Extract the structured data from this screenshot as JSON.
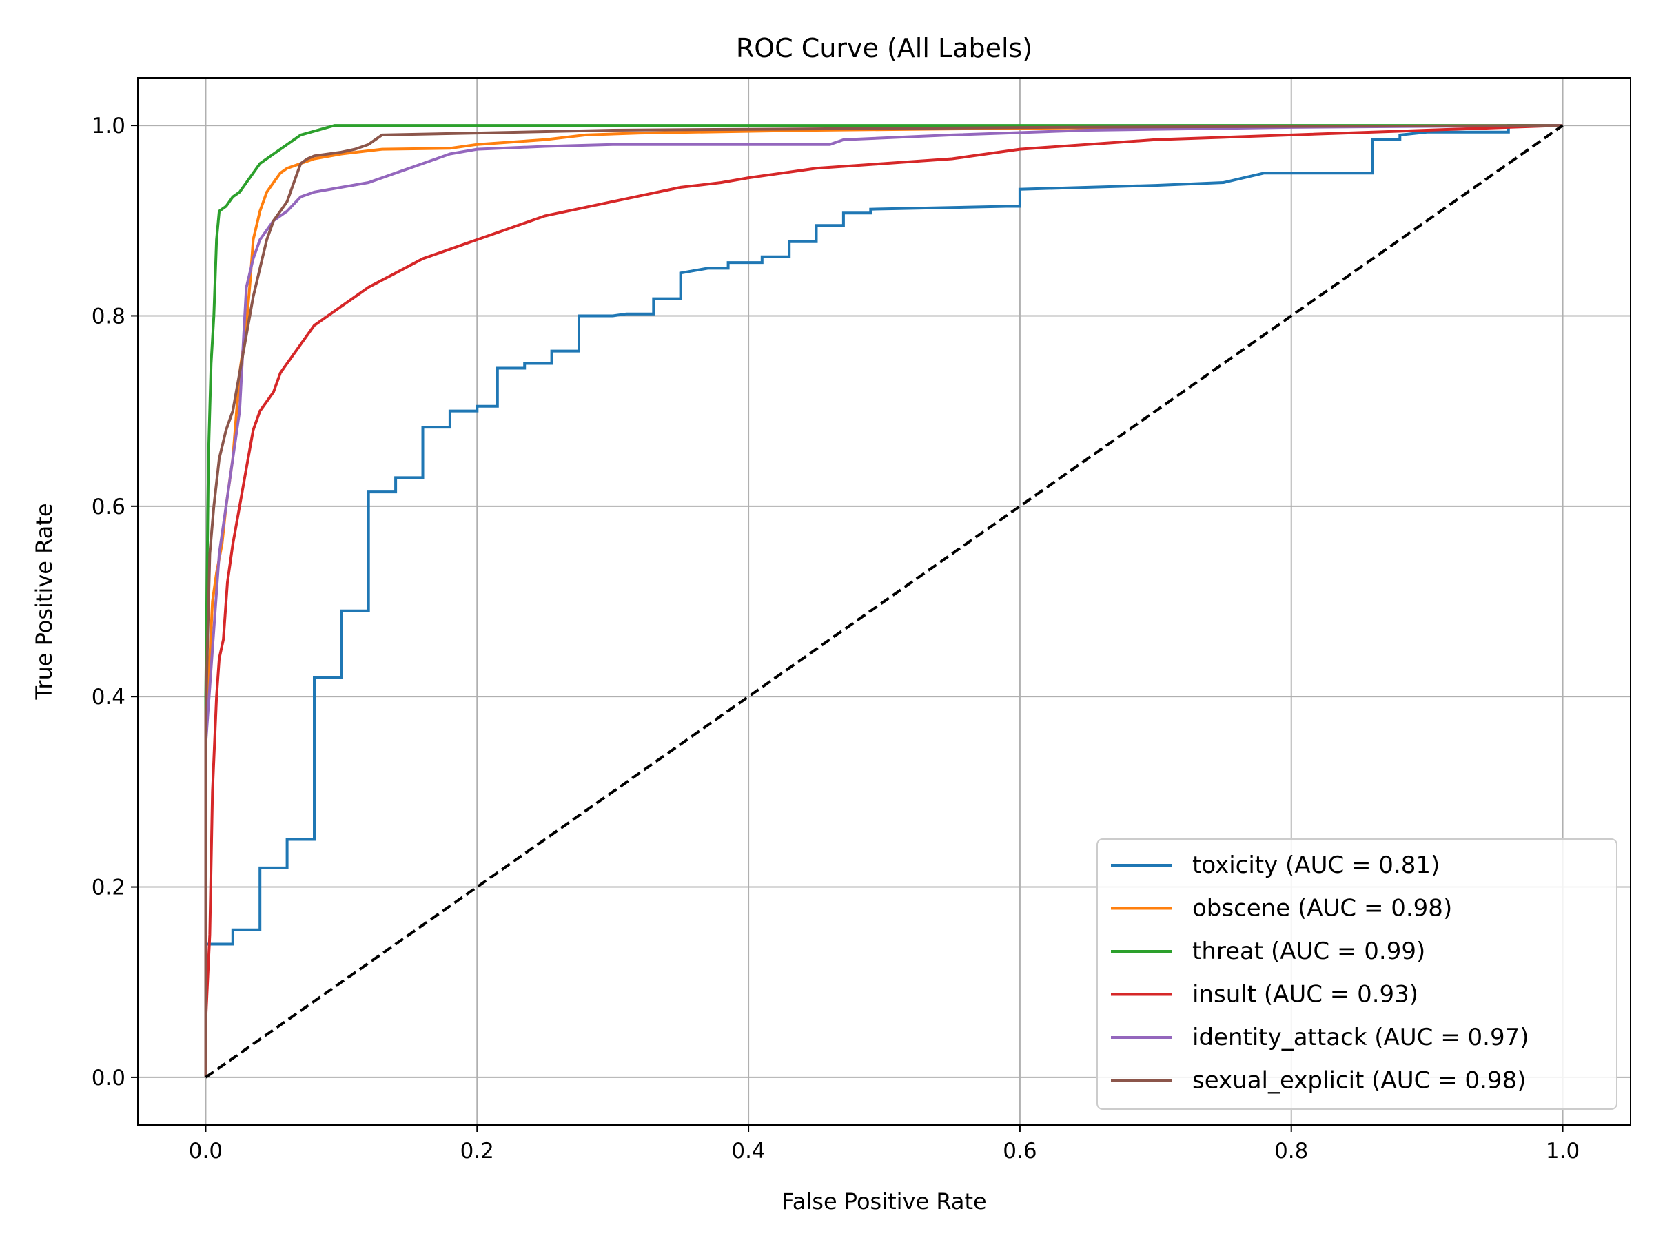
{
  "chart_data": {
    "type": "line",
    "title": "ROC Curve (All Labels)",
    "xlabel": "False Positive Rate",
    "ylabel": "True Positive Rate",
    "xlim": [
      -0.05,
      1.05
    ],
    "ylim": [
      -0.05,
      1.05
    ],
    "xticks": [
      0.0,
      0.2,
      0.4,
      0.6,
      0.8,
      1.0
    ],
    "xtick_labels": [
      "0.0",
      "0.2",
      "0.4",
      "0.6",
      "0.8",
      "1.0"
    ],
    "yticks": [
      0.0,
      0.2,
      0.4,
      0.6,
      0.8,
      1.0
    ],
    "ytick_labels": [
      "0.0",
      "0.2",
      "0.4",
      "0.6",
      "0.8",
      "1.0"
    ],
    "grid": true,
    "legend_position": "lower-right",
    "diagonal": {
      "x": [
        0,
        1
      ],
      "y": [
        0,
        1
      ],
      "color": "#000000",
      "style": "dashed"
    },
    "series": [
      {
        "name": "toxicity (AUC = 0.81)",
        "color": "#1f77b4",
        "x": [
          0.0,
          0.0,
          0.02,
          0.02,
          0.04,
          0.04,
          0.06,
          0.06,
          0.08,
          0.08,
          0.1,
          0.1,
          0.12,
          0.12,
          0.14,
          0.14,
          0.16,
          0.16,
          0.18,
          0.18,
          0.2,
          0.2,
          0.215,
          0.215,
          0.235,
          0.235,
          0.255,
          0.255,
          0.275,
          0.275,
          0.3,
          0.31,
          0.33,
          0.33,
          0.35,
          0.35,
          0.37,
          0.385,
          0.385,
          0.41,
          0.41,
          0.43,
          0.43,
          0.45,
          0.45,
          0.47,
          0.47,
          0.49,
          0.49,
          0.59,
          0.6,
          0.6,
          0.7,
          0.75,
          0.78,
          0.86,
          0.86,
          0.86,
          0.86,
          0.86,
          0.86,
          0.88,
          0.88,
          0.88,
          0.9,
          0.96,
          0.96,
          1.0
        ],
        "y": [
          0.0,
          0.14,
          0.14,
          0.155,
          0.155,
          0.22,
          0.22,
          0.25,
          0.25,
          0.42,
          0.42,
          0.49,
          0.49,
          0.615,
          0.615,
          0.63,
          0.63,
          0.683,
          0.683,
          0.7,
          0.7,
          0.705,
          0.705,
          0.745,
          0.745,
          0.75,
          0.75,
          0.763,
          0.763,
          0.8,
          0.8,
          0.802,
          0.802,
          0.818,
          0.818,
          0.845,
          0.85,
          0.85,
          0.856,
          0.856,
          0.862,
          0.862,
          0.878,
          0.878,
          0.895,
          0.895,
          0.908,
          0.908,
          0.912,
          0.915,
          0.915,
          0.933,
          0.937,
          0.94,
          0.95,
          0.95,
          0.96,
          0.965,
          0.97,
          0.98,
          0.985,
          0.985,
          0.99,
          0.99,
          0.993,
          0.993,
          1.0,
          1.0
        ]
      },
      {
        "name": "obscene (AUC = 0.98)",
        "color": "#ff7f0e",
        "x": [
          0.0,
          0.0,
          0.005,
          0.008,
          0.012,
          0.015,
          0.02,
          0.025,
          0.03,
          0.033,
          0.035,
          0.04,
          0.045,
          0.05,
          0.055,
          0.06,
          0.07,
          0.08,
          0.1,
          0.13,
          0.18,
          0.2,
          0.25,
          0.28,
          0.32,
          0.45,
          0.6,
          0.8,
          1.0
        ],
        "y": [
          0.0,
          0.35,
          0.5,
          0.53,
          0.56,
          0.6,
          0.65,
          0.74,
          0.79,
          0.84,
          0.88,
          0.91,
          0.93,
          0.94,
          0.95,
          0.955,
          0.96,
          0.965,
          0.97,
          0.975,
          0.976,
          0.98,
          0.985,
          0.99,
          0.992,
          0.995,
          0.997,
          0.999,
          1.0
        ]
      },
      {
        "name": "threat (AUC = 0.99)",
        "color": "#2ca02c",
        "x": [
          0.0,
          0.0,
          0.002,
          0.004,
          0.006,
          0.008,
          0.01,
          0.015,
          0.02,
          0.025,
          0.03,
          0.035,
          0.04,
          0.06,
          0.07,
          0.095,
          0.3,
          0.6,
          1.0
        ],
        "y": [
          0.0,
          0.4,
          0.65,
          0.75,
          0.8,
          0.88,
          0.91,
          0.915,
          0.925,
          0.93,
          0.94,
          0.95,
          0.96,
          0.98,
          0.99,
          1.0,
          1.0,
          1.0,
          1.0
        ]
      },
      {
        "name": "insult (AUC = 0.93)",
        "color": "#d62728",
        "x": [
          0.0,
          0.0,
          0.003,
          0.005,
          0.008,
          0.01,
          0.013,
          0.016,
          0.02,
          0.025,
          0.03,
          0.035,
          0.04,
          0.045,
          0.05,
          0.055,
          0.06,
          0.07,
          0.08,
          0.09,
          0.1,
          0.11,
          0.12,
          0.14,
          0.16,
          0.18,
          0.2,
          0.22,
          0.25,
          0.3,
          0.35,
          0.38,
          0.4,
          0.45,
          0.5,
          0.55,
          0.6,
          0.7,
          0.8,
          0.9,
          1.0
        ],
        "y": [
          0.0,
          0.06,
          0.15,
          0.3,
          0.4,
          0.44,
          0.46,
          0.52,
          0.56,
          0.6,
          0.64,
          0.68,
          0.7,
          0.71,
          0.72,
          0.74,
          0.75,
          0.77,
          0.79,
          0.8,
          0.81,
          0.82,
          0.83,
          0.845,
          0.86,
          0.87,
          0.88,
          0.89,
          0.905,
          0.92,
          0.935,
          0.94,
          0.945,
          0.955,
          0.96,
          0.965,
          0.975,
          0.985,
          0.99,
          0.995,
          1.0
        ]
      },
      {
        "name": "identity_attack (AUC = 0.97)",
        "color": "#9467bd",
        "x": [
          0.0,
          0.0,
          0.005,
          0.01,
          0.015,
          0.02,
          0.025,
          0.028,
          0.03,
          0.035,
          0.04,
          0.05,
          0.06,
          0.07,
          0.08,
          0.1,
          0.12,
          0.14,
          0.15,
          0.16,
          0.18,
          0.2,
          0.25,
          0.3,
          0.35,
          0.4,
          0.46,
          0.47,
          0.55,
          0.65,
          0.8,
          1.0
        ],
        "y": [
          0.0,
          0.35,
          0.45,
          0.55,
          0.6,
          0.65,
          0.7,
          0.78,
          0.83,
          0.86,
          0.88,
          0.9,
          0.91,
          0.925,
          0.93,
          0.935,
          0.94,
          0.95,
          0.955,
          0.96,
          0.97,
          0.975,
          0.978,
          0.98,
          0.98,
          0.98,
          0.98,
          0.985,
          0.99,
          0.995,
          0.998,
          1.0
        ]
      },
      {
        "name": "sexual_explicit (AUC = 0.98)",
        "color": "#8c564b",
        "x": [
          0.0,
          0.0,
          0.003,
          0.006,
          0.01,
          0.015,
          0.02,
          0.025,
          0.03,
          0.035,
          0.04,
          0.045,
          0.05,
          0.055,
          0.06,
          0.065,
          0.07,
          0.075,
          0.08,
          0.1,
          0.11,
          0.12,
          0.13,
          0.2,
          0.3,
          0.62,
          1.0
        ],
        "y": [
          0.0,
          0.38,
          0.55,
          0.6,
          0.65,
          0.68,
          0.7,
          0.74,
          0.78,
          0.82,
          0.85,
          0.88,
          0.9,
          0.91,
          0.92,
          0.94,
          0.96,
          0.965,
          0.968,
          0.972,
          0.975,
          0.98,
          0.99,
          0.992,
          0.995,
          0.998,
          1.0
        ]
      }
    ]
  }
}
